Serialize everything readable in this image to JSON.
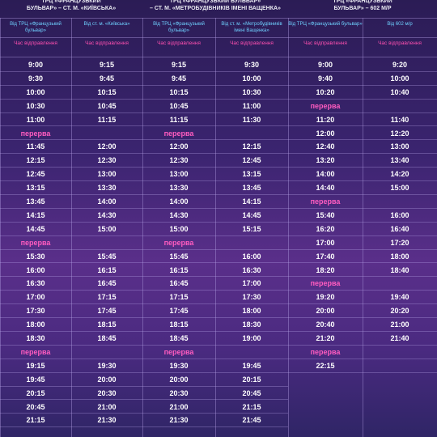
{
  "routes": [
    {
      "title_lines": [
        "ТРЦ «ФРАНЦУЗЬКИЙ",
        "БУЛЬВАР» – СТ. М. «КИЇВСЬКА»"
      ],
      "columns": [
        {
          "header": "Від ТРЦ «Французький бульвар»",
          "sub": "Час відправлення"
        },
        {
          "header": "Від ст. м. «Київська»",
          "sub": "Час відправлення"
        }
      ],
      "break_label": "перерва",
      "rows": [
        [
          "9:00",
          "9:15"
        ],
        [
          "9:30",
          "9:45"
        ],
        [
          "10:00",
          "10:15"
        ],
        [
          "10:30",
          "10:45"
        ],
        [
          "11:00",
          "11:15"
        ],
        [
          "BREAK",
          "BREAK"
        ],
        [
          "11:45",
          "12:00"
        ],
        [
          "12:15",
          "12:30"
        ],
        [
          "12:45",
          "13:00"
        ],
        [
          "13:15",
          "13:30"
        ],
        [
          "13:45",
          "14:00"
        ],
        [
          "14:15",
          "14:30"
        ],
        [
          "14:45",
          "15:00"
        ],
        [
          "BREAK",
          "BREAK"
        ],
        [
          "15:30",
          "15:45"
        ],
        [
          "16:00",
          "16:15"
        ],
        [
          "16:30",
          "16:45"
        ],
        [
          "17:00",
          "17:15"
        ],
        [
          "17:30",
          "17:45"
        ],
        [
          "18:00",
          "18:15"
        ],
        [
          "18:30",
          "18:45"
        ],
        [
          "BREAK",
          "BREAK"
        ],
        [
          "19:15",
          "19:30"
        ],
        [
          "19:45",
          "20:00"
        ],
        [
          "20:15",
          "20:30"
        ],
        [
          "20:45",
          "21:00"
        ],
        [
          "21:15",
          "21:30"
        ]
      ]
    },
    {
      "title_lines": [
        "ТРЦ «ФРАНЦУЗЬКИЙ БУЛЬВАР»",
        "– СТ. М. «МЕТРОБУДІВНИКІВ ІМЕНІ ВАЩЕНКА»"
      ],
      "columns": [
        {
          "header": "Від ТРЦ «Французький бульвар»",
          "sub": "Час відправлення"
        },
        {
          "header": "Від ст. м. «Метробудівників імені Ващенка»",
          "sub": "Час відправлення"
        }
      ],
      "break_label": "перерва",
      "rows": [
        [
          "9:15",
          "9:30"
        ],
        [
          "9:45",
          "10:00"
        ],
        [
          "10:15",
          "10:30"
        ],
        [
          "10:45",
          "11:00"
        ],
        [
          "11:15",
          "11:30"
        ],
        [
          "BREAK",
          "BREAK"
        ],
        [
          "12:00",
          "12:15"
        ],
        [
          "12:30",
          "12:45"
        ],
        [
          "13:00",
          "13:15"
        ],
        [
          "13:30",
          "13:45"
        ],
        [
          "14:00",
          "14:15"
        ],
        [
          "14:30",
          "14:45"
        ],
        [
          "15:00",
          "15:15"
        ],
        [
          "BREAK",
          "BREAK"
        ],
        [
          "15:45",
          "16:00"
        ],
        [
          "16:15",
          "16:30"
        ],
        [
          "16:45",
          "17:00"
        ],
        [
          "17:15",
          "17:30"
        ],
        [
          "17:45",
          "18:00"
        ],
        [
          "18:15",
          "18:30"
        ],
        [
          "18:45",
          "19:00"
        ],
        [
          "BREAK",
          "BREAK"
        ],
        [
          "19:30",
          "19:45"
        ],
        [
          "20:00",
          "20:15"
        ],
        [
          "20:30",
          "20:45"
        ],
        [
          "21:00",
          "21:15"
        ],
        [
          "21:30",
          "21:45"
        ]
      ]
    },
    {
      "title_lines": [
        "ТРЦ «ФРАНЦУЗЬКИЙ",
        "БУЛЬВАР» – 602 М/Р"
      ],
      "columns": [
        {
          "header": "Від ТРЦ «Французький бульвар»",
          "sub": "Час відправлення"
        },
        {
          "header": "Від 602 м/р",
          "sub": "Час відправлення"
        }
      ],
      "break_label": "перерва",
      "rows": [
        [
          "9:00",
          "9:20"
        ],
        [
          "9:40",
          "10:00"
        ],
        [
          "10:20",
          "10:40"
        ],
        [
          "BREAK",
          "BREAK"
        ],
        [
          "11:20",
          "11:40"
        ],
        [
          "12:00",
          "12:20"
        ],
        [
          "12:40",
          "13:00"
        ],
        [
          "13:20",
          "13:40"
        ],
        [
          "14:00",
          "14:20"
        ],
        [
          "14:40",
          "15:00"
        ],
        [
          "BREAK",
          "BREAK"
        ],
        [
          "15:40",
          "16:00"
        ],
        [
          "16:20",
          "16:40"
        ],
        [
          "17:00",
          "17:20"
        ],
        [
          "17:40",
          "18:00"
        ],
        [
          "18:20",
          "18:40"
        ],
        [
          "BREAK",
          "BREAK"
        ],
        [
          "19:20",
          "19:40"
        ],
        [
          "20:00",
          "20:20"
        ],
        [
          "20:40",
          "21:00"
        ],
        [
          "21:20",
          "21:40"
        ],
        [
          "BREAK",
          "BREAK"
        ],
        [
          "22:15",
          ""
        ]
      ]
    }
  ]
}
